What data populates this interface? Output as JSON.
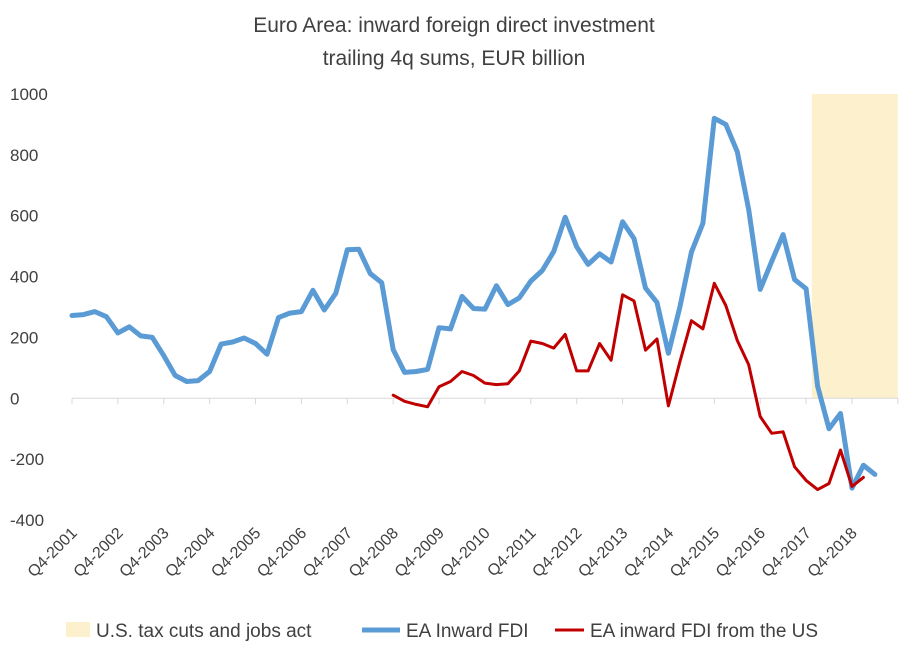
{
  "chart_data": {
    "type": "line",
    "title": "Euro Area: inward foreign direct investment",
    "subtitle": "trailing 4q sums, EUR billion",
    "xlabel": "",
    "ylabel": "",
    "ylim": [
      -400,
      1000
    ],
    "yticks": [
      1000,
      800,
      600,
      400,
      200,
      0,
      -200,
      -400
    ],
    "grid": false,
    "legend_position": "bottom",
    "x_tick_labels": [
      "Q4-2001",
      "Q4-2002",
      "Q4-2003",
      "Q4-2004",
      "Q4-2005",
      "Q4-2006",
      "Q4-2007",
      "Q4-2008",
      "Q4-2009",
      "Q4-2010",
      "Q4-2011",
      "Q4-2012",
      "Q4-2013",
      "Q4-2014",
      "Q4-2015",
      "Q4-2016",
      "Q4-2017",
      "Q4-2018"
    ],
    "x": [
      "Q4-2001",
      "Q1-2002",
      "Q2-2002",
      "Q3-2002",
      "Q4-2002",
      "Q1-2003",
      "Q2-2003",
      "Q3-2003",
      "Q4-2003",
      "Q1-2004",
      "Q2-2004",
      "Q3-2004",
      "Q4-2004",
      "Q1-2005",
      "Q2-2005",
      "Q3-2005",
      "Q4-2005",
      "Q1-2006",
      "Q2-2006",
      "Q3-2006",
      "Q4-2006",
      "Q1-2007",
      "Q2-2007",
      "Q3-2007",
      "Q4-2007",
      "Q1-2008",
      "Q2-2008",
      "Q3-2008",
      "Q4-2008",
      "Q1-2009",
      "Q2-2009",
      "Q3-2009",
      "Q4-2009",
      "Q1-2010",
      "Q2-2010",
      "Q3-2010",
      "Q4-2010",
      "Q1-2011",
      "Q2-2011",
      "Q3-2011",
      "Q4-2011",
      "Q1-2012",
      "Q2-2012",
      "Q3-2012",
      "Q4-2012",
      "Q1-2013",
      "Q2-2013",
      "Q3-2013",
      "Q4-2013",
      "Q1-2014",
      "Q2-2014",
      "Q3-2014",
      "Q4-2014",
      "Q1-2015",
      "Q2-2015",
      "Q3-2015",
      "Q4-2015",
      "Q1-2016",
      "Q2-2016",
      "Q3-2016",
      "Q4-2016",
      "Q1-2017",
      "Q2-2017",
      "Q3-2017",
      "Q4-2017",
      "Q1-2018",
      "Q2-2018",
      "Q3-2018",
      "Q4-2018",
      "Q1-2019",
      "Q2-2019",
      "Q3-2019",
      "Q4-2019"
    ],
    "shaded_region": {
      "name": "U.S. tax cuts and jobs  act",
      "x_start": "Q4-2017",
      "x_end": "Q4-2019",
      "color": "#fdf0cc"
    },
    "series": [
      {
        "name": "EA Inward FDI",
        "color": "#5b9bd5",
        "values": [
          272,
          275,
          285,
          268,
          215,
          235,
          205,
          200,
          140,
          75,
          55,
          58,
          88,
          178,
          185,
          198,
          180,
          145,
          265,
          280,
          285,
          355,
          290,
          345,
          488,
          490,
          410,
          380,
          160,
          85,
          88,
          95,
          232,
          228,
          335,
          295,
          293,
          370,
          308,
          330,
          385,
          420,
          482,
          595,
          498,
          440,
          475,
          448,
          580,
          525,
          362,
          315,
          148,
          300,
          480,
          575,
          920,
          900,
          810,
          620,
          358,
          450,
          538,
          390,
          360,
          40,
          -100,
          -50,
          -295,
          -220,
          -250,
          null,
          null
        ]
      },
      {
        "name": "EA inward FDI from the US",
        "color": "#c00000",
        "values": [
          null,
          null,
          null,
          null,
          null,
          null,
          null,
          null,
          null,
          null,
          null,
          null,
          null,
          null,
          null,
          null,
          null,
          null,
          null,
          null,
          null,
          null,
          null,
          null,
          null,
          null,
          null,
          null,
          10,
          -10,
          -20,
          -28,
          38,
          55,
          88,
          75,
          50,
          45,
          48,
          90,
          188,
          180,
          165,
          210,
          90,
          90,
          180,
          125,
          340,
          320,
          158,
          195,
          -25,
          120,
          255,
          228,
          378,
          305,
          190,
          110,
          -60,
          -115,
          -110,
          -225,
          -270,
          -300,
          -280,
          -170,
          -290,
          -260,
          null,
          null,
          null
        ]
      }
    ]
  }
}
